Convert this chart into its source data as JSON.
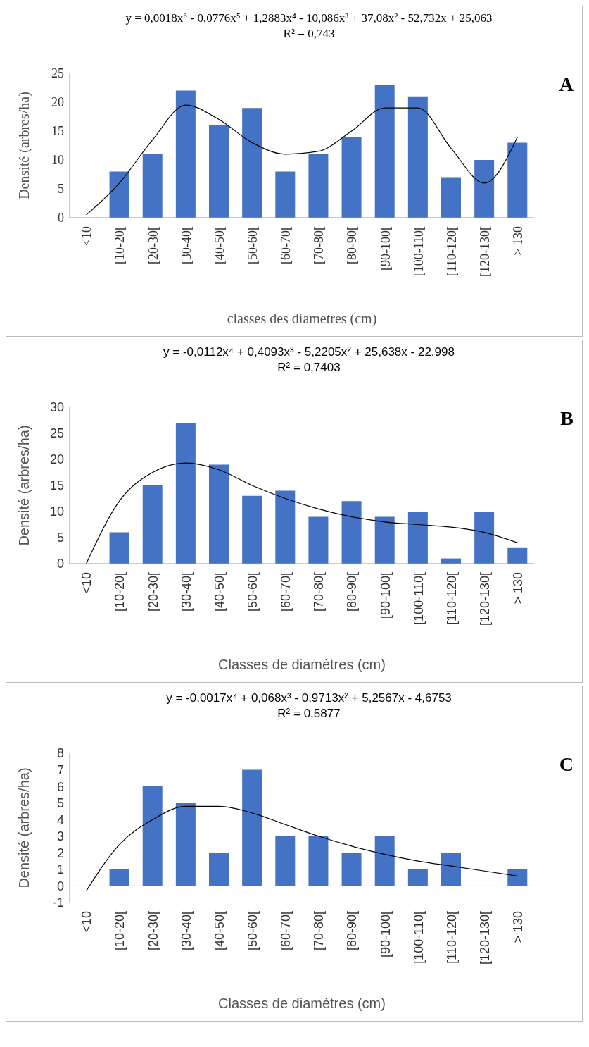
{
  "chart_data": [
    {
      "type": "bar",
      "xlabel": "classes des diametres (cm)",
      "ylabel": "Densité (arbres/ha)",
      "ylim": [
        0,
        25
      ],
      "yticks": [
        0,
        5,
        10,
        15,
        20,
        25
      ],
      "grid": false,
      "legend": false,
      "marker": "none",
      "categories": [
        "<10",
        "[10-20[",
        "[20-30[",
        "[30-40[",
        "[40-50[",
        "[50-60[",
        "[60-70[",
        "[70-80[",
        "[80-90[",
        "[90-100[",
        "[100-110[",
        "[110-120[",
        "[120-130[",
        "> 130"
      ],
      "annotations": [
        "y = 0,0018x⁶ - 0,0776x⁵ + 1,2883x⁴ - 10,086x³ + 37,08x² - 52,732x + 25,063",
        "R² = 0,743",
        "A"
      ],
      "series": [
        {
          "color": "#4472c4",
          "values": [
            0,
            8,
            11,
            22,
            16,
            19,
            8,
            11,
            14,
            23,
            21,
            7,
            10,
            13
          ]
        },
        {
          "type": "line",
          "color": "#000000",
          "values": [
            0.5,
            6,
            13.5,
            19.5,
            17,
            13,
            11,
            11.5,
            15,
            19,
            19,
            12,
            6,
            14
          ]
        }
      ]
    },
    {
      "type": "bar",
      "xlabel": "Classes de diamètres (cm)",
      "ylabel": "Densité (arbres/ha)",
      "ylim": [
        0,
        30
      ],
      "yticks": [
        0,
        5,
        10,
        15,
        20,
        25,
        30
      ],
      "grid": false,
      "legend": false,
      "marker": "none",
      "categories": [
        "<10",
        "[10-20[",
        "[20-30[",
        "[30-40[",
        "[40-50[",
        "[50-60[",
        "[60-70[",
        "[70-80[",
        "[80-90[",
        "[90-100[",
        "[100-110[",
        "[110-120[",
        "[120-130[",
        "> 130"
      ],
      "annotations": [
        "y = -0,0112x⁴ + 0,4093x³ - 5,2205x² + 25,638x - 22,998",
        "R² = 0,7403",
        "B"
      ],
      "series": [
        {
          "color": "#4472c4",
          "values": [
            0,
            6,
            15,
            27,
            19,
            13,
            14,
            9,
            12,
            9,
            10,
            1,
            10,
            3
          ]
        },
        {
          "type": "line",
          "color": "#000000",
          "values": [
            0,
            12,
            17.5,
            19.3,
            18,
            15,
            12.5,
            10.5,
            9,
            8,
            7.5,
            7,
            6,
            4
          ]
        }
      ]
    },
    {
      "type": "bar",
      "xlabel": "Classes de diamètres (cm)",
      "ylabel": "Densité (arbres/ha)",
      "ylim": [
        -1,
        8
      ],
      "yticks": [
        -1,
        0,
        1,
        2,
        3,
        4,
        5,
        6,
        7,
        8
      ],
      "grid": false,
      "legend": false,
      "marker": "none",
      "categories": [
        "<10",
        "[10-20[",
        "[20-30[",
        "[30-40[",
        "[40-50[",
        "[50-60[",
        "[60-70[",
        "[70-80[",
        "[80-90[",
        "[90-100[",
        "[100-110[",
        "[110-120[",
        "[120-130[",
        "> 130"
      ],
      "annotations": [
        "y = -0,0017x⁴ + 0,068x³ - 0,9713x² + 5,2567x - 4,6753",
        "R² = 0,5877",
        "C"
      ],
      "series": [
        {
          "color": "#4472c4",
          "values": [
            0,
            1,
            6,
            5,
            2,
            7,
            3,
            3,
            2,
            3,
            1,
            2,
            0,
            1
          ]
        },
        {
          "type": "line",
          "color": "#000000",
          "values": [
            -0.3,
            2.5,
            4,
            4.8,
            4.8,
            4.4,
            3.7,
            3,
            2.4,
            1.9,
            1.5,
            1.2,
            0.9,
            0.6
          ]
        }
      ]
    }
  ]
}
